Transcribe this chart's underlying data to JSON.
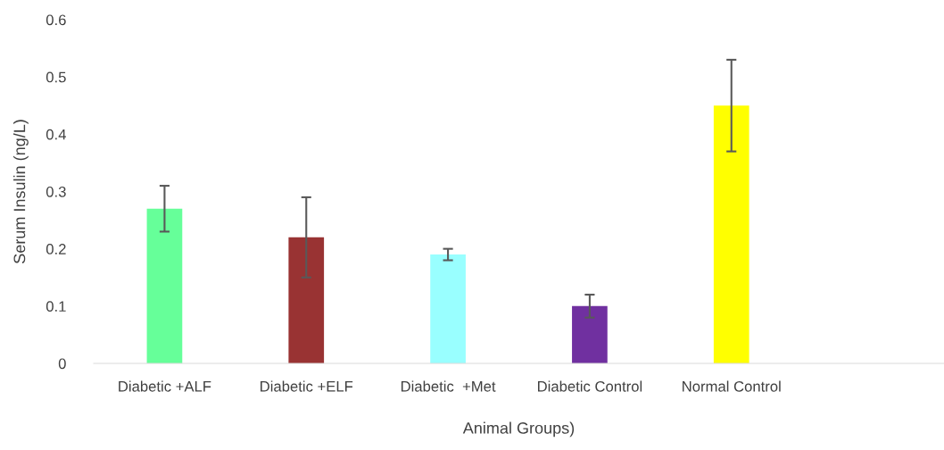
{
  "chart_data": {
    "type": "bar",
    "xlabel": "Animal Groups)",
    "ylabel": "Serum Insulin (ng/L)",
    "categories": [
      "Diabetic +ALF",
      "Diabetic +ELF",
      "Diabetic  +Met",
      "Diabetic Control",
      "Normal Control",
      null
    ],
    "values": [
      0.27,
      0.22,
      0.19,
      0.1,
      0.45,
      null
    ],
    "errors": [
      0.04,
      0.07,
      0.01,
      0.02,
      0.08,
      null
    ],
    "colors": [
      "#66ff99",
      "#993333",
      "#99ffff",
      "#7030a0",
      "#ffff00",
      "#ffffff"
    ],
    "ylim": [
      0,
      0.6
    ],
    "yticks": [
      0,
      0.1,
      0.2,
      0.3,
      0.4,
      0.5,
      0.6
    ],
    "grid": false,
    "legend": false
  }
}
